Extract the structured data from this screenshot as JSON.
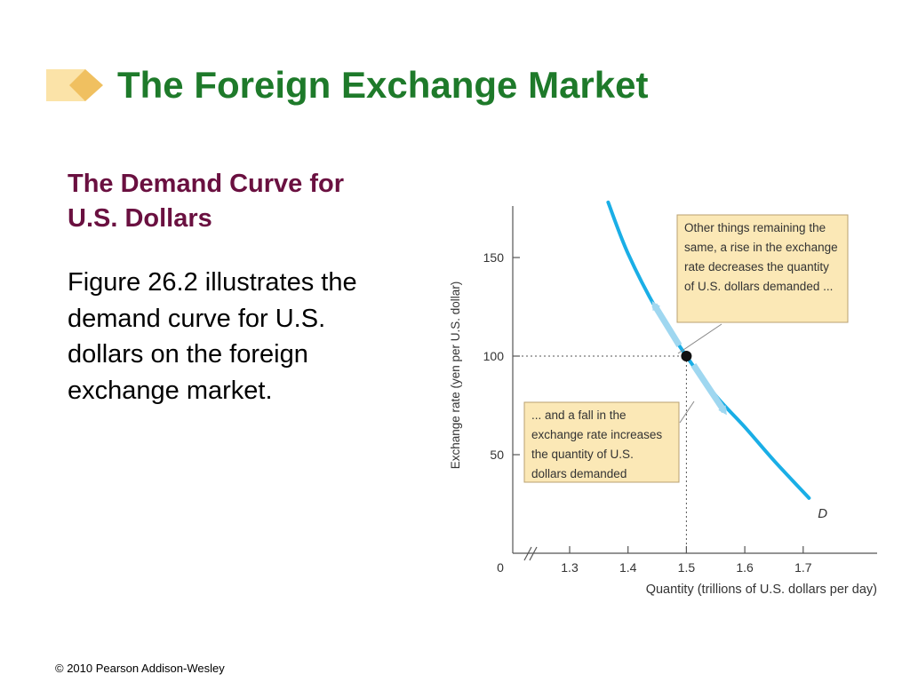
{
  "slide": {
    "title": "The Foreign Exchange Market",
    "subtitle": "The Demand Curve for U.S. Dollars",
    "body": "Figure 26.2 illustrates the demand curve for U.S. dollars on the foreign exchange market.",
    "footer": "© 2010 Pearson Addison-Wesley"
  },
  "colors": {
    "title": "#1e7a2a",
    "subtitle": "#6a1040",
    "curve": "#1aaee6",
    "callout_fill": "#fbe8b6",
    "deco_light": "#fbe3a8",
    "deco_dark": "#f0c060"
  },
  "chart_data": {
    "type": "line",
    "xlabel": "Quantity (trillions of U.S. dollars per day)",
    "ylabel": "Exchange rate (yen per U.S. dollar)",
    "x_ticks": [
      "0",
      "1.3",
      "1.4",
      "1.5",
      "1.6",
      "1.7"
    ],
    "y_ticks": [
      "50",
      "100",
      "150"
    ],
    "xlim": [
      1.2,
      1.82
    ],
    "ylim": [
      0,
      190
    ],
    "axis_break": true,
    "grid": false,
    "series": [
      {
        "name": "D",
        "x": [
          1.366,
          1.4,
          1.45,
          1.5,
          1.55,
          1.6,
          1.65,
          1.71
        ],
        "y": [
          178,
          152,
          123,
          100,
          80,
          64,
          47,
          28
        ]
      }
    ],
    "equilibrium": {
      "x": 1.5,
      "y": 100
    },
    "annotations": [
      "Other things remaining the same, a rise in the exchange rate decreases the quantity of U.S. dollars demanded ...",
      "... and a fall in the exchange rate increases the quantity of U.S. dollars demanded"
    ]
  }
}
